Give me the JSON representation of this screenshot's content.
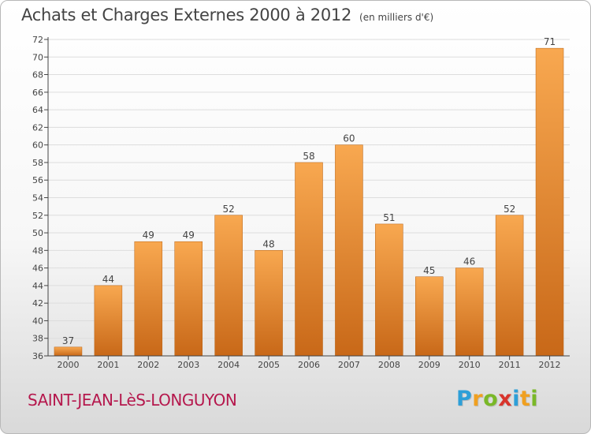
{
  "title": "Achats et Charges Externes 2000 à 2012",
  "unit": "(en milliers d'€)",
  "location": "SAINT-JEAN-LèS-LONGUYON",
  "brand": {
    "letters": [
      "P",
      "r",
      "o",
      "x",
      "i",
      "t",
      "i"
    ],
    "colors": [
      "#2d9fd8",
      "#f0a020",
      "#7ab828",
      "#d8342c",
      "#2d9fd8",
      "#f0a020",
      "#7ab828"
    ]
  },
  "colors": {
    "bar_light": "#f8a850",
    "bar_dark": "#c86818",
    "axis": "#444444",
    "grid": "#dddddd",
    "title": "#444444",
    "location": "#b5184d"
  },
  "chart_data": {
    "type": "bar",
    "categories": [
      "2000",
      "2001",
      "2002",
      "2003",
      "2004",
      "2005",
      "2006",
      "2007",
      "2008",
      "2009",
      "2010",
      "2011",
      "2012"
    ],
    "values": [
      37,
      44,
      49,
      49,
      52,
      48,
      58,
      60,
      51,
      45,
      46,
      52,
      71
    ],
    "data_labels": [
      "37",
      "44",
      "49",
      "49",
      "52",
      "48",
      "58",
      "60",
      "51",
      "45",
      "46",
      "52",
      "71"
    ],
    "yticks": [
      36,
      38,
      40,
      42,
      44,
      46,
      48,
      50,
      52,
      54,
      56,
      58,
      60,
      62,
      64,
      66,
      68,
      70,
      72
    ],
    "ylim": [
      36,
      72
    ],
    "xlabel": "",
    "ylabel": "",
    "grid": "horizontal",
    "legend": "none"
  }
}
